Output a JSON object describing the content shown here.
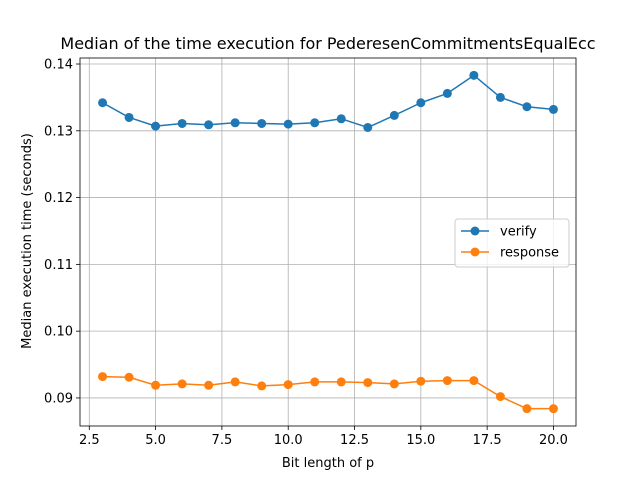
{
  "chart_data": {
    "type": "line",
    "title": "Median of the time execution for PederesenCommitmentsEqualEcc",
    "xlabel": "Bit length of p",
    "ylabel": "Median execution time (seconds)",
    "xlim": [
      2.15,
      20.85
    ],
    "ylim": [
      0.0858,
      0.1409
    ],
    "xticks": [
      2.5,
      5.0,
      7.5,
      10.0,
      12.5,
      15.0,
      17.5,
      20.0
    ],
    "xtick_labels": [
      "2.5",
      "5.0",
      "7.5",
      "10.0",
      "12.5",
      "15.0",
      "17.5",
      "20.0"
    ],
    "yticks": [
      0.09,
      0.1,
      0.11,
      0.12,
      0.13,
      0.14
    ],
    "ytick_labels": [
      "0.09",
      "0.10",
      "0.11",
      "0.12",
      "0.13",
      "0.14"
    ],
    "grid": true,
    "legend_position": "center-right",
    "x": [
      3,
      4,
      5,
      6,
      7,
      8,
      9,
      10,
      11,
      12,
      13,
      14,
      15,
      16,
      17,
      18,
      19,
      20
    ],
    "series": [
      {
        "name": "verify",
        "color": "#1f77b4",
        "values": [
          0.1342,
          0.132,
          0.1307,
          0.1311,
          0.1309,
          0.1312,
          0.1311,
          0.131,
          0.1312,
          0.1318,
          0.1305,
          0.1323,
          0.1342,
          0.1356,
          0.1383,
          0.135,
          0.1336,
          0.1332
        ]
      },
      {
        "name": "response",
        "color": "#ff7f0e",
        "values": [
          0.0932,
          0.0931,
          0.0919,
          0.0921,
          0.0919,
          0.0924,
          0.0918,
          0.092,
          0.0924,
          0.0924,
          0.0923,
          0.0921,
          0.0925,
          0.0926,
          0.0926,
          0.0902,
          0.0884,
          0.0884
        ]
      }
    ]
  }
}
